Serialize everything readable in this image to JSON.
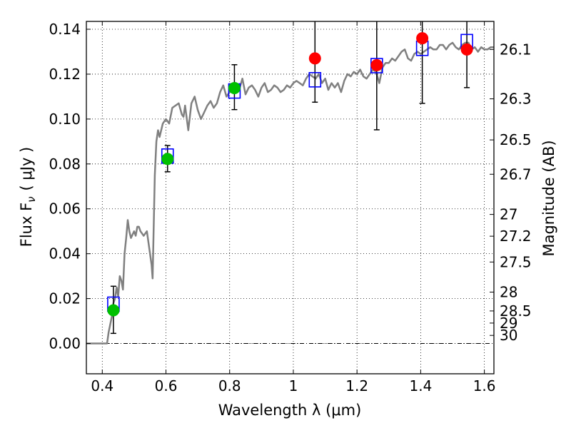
{
  "chart_data": {
    "type": "scatter",
    "xlabel": "Wavelength  λ (μm)",
    "ylabel": "Flux  F",
    "ylabel_sub": "ν",
    "ylabel_unit": "( μJy )",
    "y2label": "Magnitude (AB)",
    "xlim": [
      0.35,
      1.63
    ],
    "ylim": [
      -0.0135,
      0.1435
    ],
    "grid": true,
    "x_ticks": [
      0.4,
      0.6,
      0.8,
      1.0,
      1.2,
      1.4,
      1.6
    ],
    "x_tick_labels": [
      "0.4",
      "0.6",
      "0.8",
      "1",
      "1.2",
      "1.4",
      "1.6"
    ],
    "y_ticks": [
      0.0,
      0.02,
      0.04,
      0.06,
      0.08,
      0.1,
      0.12,
      0.14
    ],
    "y_tick_labels": [
      "0.00",
      "0.02",
      "0.04",
      "0.06",
      "0.08",
      "0.10",
      "0.12",
      "0.14"
    ],
    "y2_ticks": [
      {
        "label": "26.1",
        "flux": 0.131
      },
      {
        "label": "26.3",
        "flux": 0.109
      },
      {
        "label": "26.5",
        "flux": 0.0907
      },
      {
        "label": "26.7",
        "flux": 0.0754
      },
      {
        "label": "27",
        "flux": 0.0575
      },
      {
        "label": "27.2",
        "flux": 0.0478
      },
      {
        "label": "27.5",
        "flux": 0.0363
      },
      {
        "label": "28",
        "flux": 0.0229
      },
      {
        "label": "28.5",
        "flux": 0.0145
      },
      {
        "label": "29",
        "flux": 0.0091
      },
      {
        "label": "30",
        "flux": 0.0036
      }
    ],
    "model_spectrum": {
      "color": "#808080",
      "x": [
        0.35,
        0.415,
        0.42,
        0.43,
        0.435,
        0.44,
        0.445,
        0.45,
        0.455,
        0.46,
        0.465,
        0.47,
        0.475,
        0.48,
        0.485,
        0.49,
        0.5,
        0.505,
        0.51,
        0.515,
        0.52,
        0.53,
        0.54,
        0.545,
        0.55,
        0.555,
        0.558,
        0.565,
        0.57,
        0.575,
        0.58,
        0.59,
        0.6,
        0.61,
        0.62,
        0.63,
        0.64,
        0.65,
        0.655,
        0.66,
        0.67,
        0.68,
        0.69,
        0.7,
        0.71,
        0.72,
        0.73,
        0.74,
        0.75,
        0.76,
        0.77,
        0.78,
        0.79,
        0.8,
        0.81,
        0.82,
        0.83,
        0.84,
        0.85,
        0.86,
        0.87,
        0.88,
        0.89,
        0.9,
        0.91,
        0.92,
        0.93,
        0.94,
        0.95,
        0.96,
        0.97,
        0.98,
        0.99,
        1.0,
        1.01,
        1.02,
        1.03,
        1.04,
        1.05,
        1.06,
        1.07,
        1.08,
        1.09,
        1.1,
        1.11,
        1.12,
        1.13,
        1.14,
        1.15,
        1.16,
        1.17,
        1.18,
        1.19,
        1.2,
        1.21,
        1.22,
        1.23,
        1.24,
        1.25,
        1.26,
        1.27,
        1.28,
        1.29,
        1.3,
        1.31,
        1.32,
        1.33,
        1.34,
        1.35,
        1.36,
        1.37,
        1.38,
        1.39,
        1.4,
        1.41,
        1.42,
        1.43,
        1.44,
        1.45,
        1.46,
        1.47,
        1.48,
        1.49,
        1.5,
        1.51,
        1.52,
        1.53,
        1.54,
        1.55,
        1.56,
        1.57,
        1.58,
        1.59,
        1.6,
        1.61,
        1.62,
        1.63
      ],
      "y": [
        0.0,
        0.0,
        0.005,
        0.012,
        0.018,
        0.02,
        0.025,
        0.021,
        0.03,
        0.028,
        0.024,
        0.04,
        0.047,
        0.055,
        0.05,
        0.047,
        0.05,
        0.048,
        0.052,
        0.052,
        0.05,
        0.048,
        0.05,
        0.045,
        0.04,
        0.035,
        0.029,
        0.075,
        0.09,
        0.095,
        0.092,
        0.098,
        0.1,
        0.098,
        0.105,
        0.106,
        0.107,
        0.102,
        0.101,
        0.106,
        0.095,
        0.107,
        0.11,
        0.104,
        0.1,
        0.103,
        0.106,
        0.108,
        0.105,
        0.107,
        0.112,
        0.115,
        0.11,
        0.112,
        0.115,
        0.116,
        0.113,
        0.118,
        0.111,
        0.114,
        0.115,
        0.113,
        0.11,
        0.114,
        0.116,
        0.112,
        0.113,
        0.115,
        0.114,
        0.112,
        0.113,
        0.115,
        0.114,
        0.116,
        0.117,
        0.116,
        0.115,
        0.118,
        0.12,
        0.119,
        0.118,
        0.12,
        0.116,
        0.118,
        0.113,
        0.116,
        0.114,
        0.116,
        0.112,
        0.117,
        0.12,
        0.119,
        0.121,
        0.12,
        0.122,
        0.119,
        0.118,
        0.12,
        0.122,
        0.121,
        0.116,
        0.123,
        0.125,
        0.125,
        0.127,
        0.126,
        0.128,
        0.13,
        0.131,
        0.127,
        0.126,
        0.129,
        0.13,
        0.129,
        0.13,
        0.131,
        0.132,
        0.131,
        0.131,
        0.133,
        0.133,
        0.131,
        0.133,
        0.134,
        0.132,
        0.131,
        0.133,
        0.134,
        0.134,
        0.131,
        0.132,
        0.13,
        0.132,
        0.131,
        0.131,
        0.132,
        0.132
      ]
    },
    "model_photometry": {
      "color": "#0000ff",
      "x": [
        0.435,
        0.605,
        0.815,
        1.068,
        1.262,
        1.405,
        1.545
      ],
      "y": [
        0.0175,
        0.0835,
        0.1125,
        0.1175,
        0.1238,
        0.1315,
        0.1345
      ]
    },
    "observed_green": {
      "color": "#00c000",
      "x": [
        0.435,
        0.605,
        0.815
      ],
      "y": [
        0.0148,
        0.0822,
        0.1138
      ],
      "err_low": [
        0.0045,
        0.0765,
        0.1042
      ],
      "err_high": [
        0.0255,
        0.0882,
        0.1242
      ]
    },
    "observed_red": {
      "color": "#ff0000",
      "x": [
        1.068,
        1.262,
        1.405,
        1.545
      ],
      "y": [
        0.127,
        0.124,
        0.136,
        0.131
      ],
      "err_low": [
        0.1075,
        0.0952,
        0.107,
        0.114
      ],
      "err_high": [
        0.1435,
        0.1435,
        0.1435,
        0.1435
      ]
    }
  }
}
